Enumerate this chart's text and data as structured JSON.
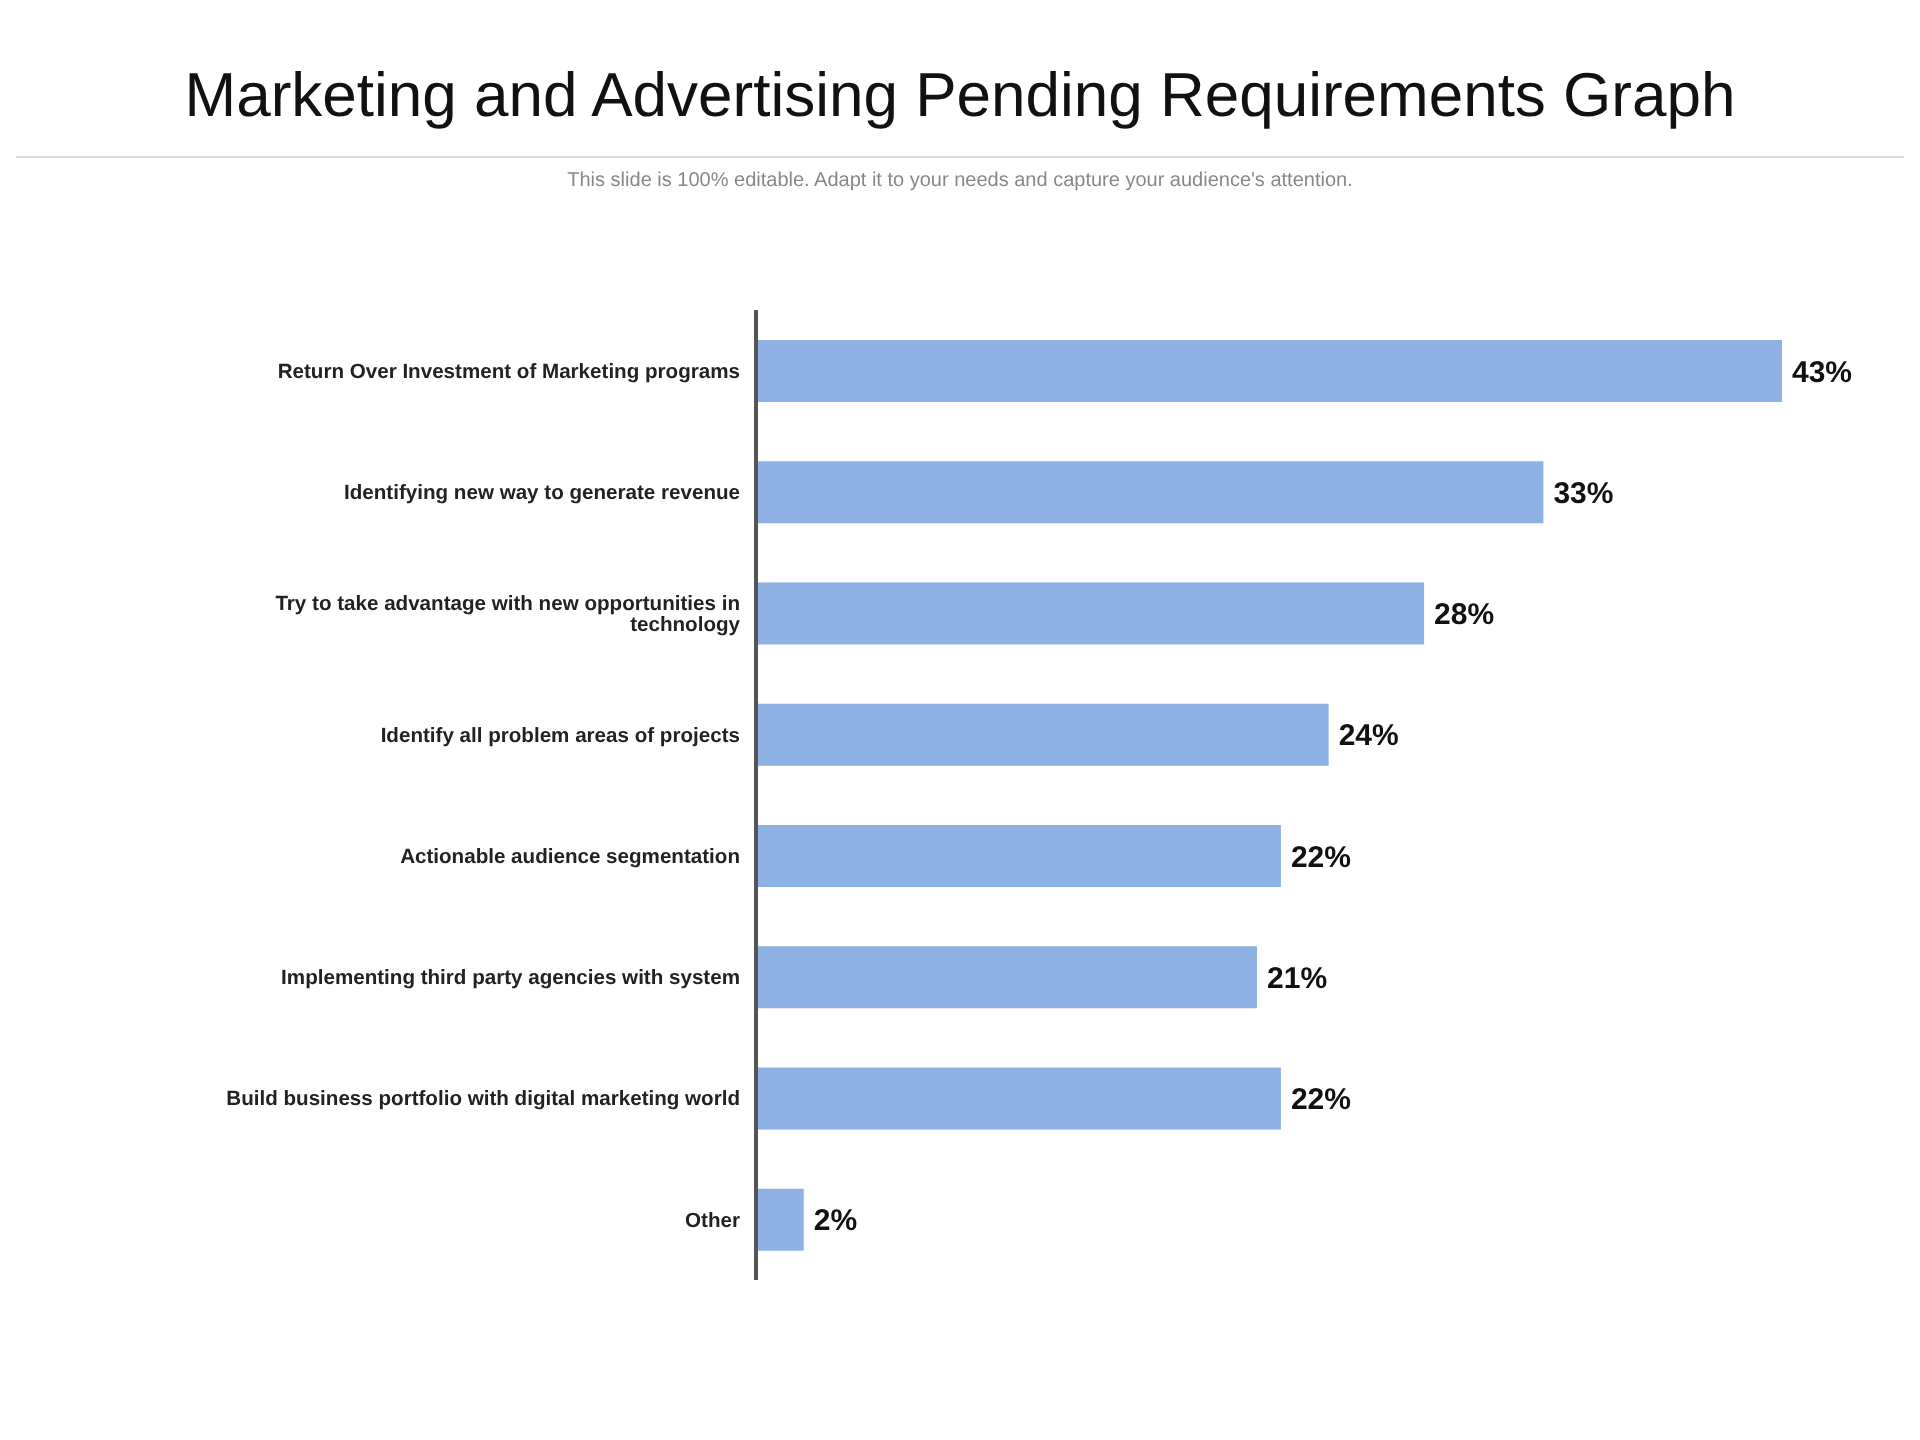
{
  "chart_data": {
    "type": "bar",
    "orientation": "horizontal",
    "title": "Marketing and Advertising Pending Requirements Graph",
    "subtitle": "This slide is 100% editable. Adapt it to your needs and capture your audience's attention.",
    "categories": [
      "Return Over Investment of Marketing programs",
      "Identifying  new way to generate revenue",
      "Try to take advantage with new opportunities in technology",
      "Identify all problem areas of projects",
      "Actionable audience segmentation",
      "Implementing third party agencies with system",
      "Build business portfolio with digital marketing world",
      "Other"
    ],
    "values": [
      43,
      33,
      28,
      24,
      22,
      21,
      22,
      2
    ],
    "value_labels": [
      "43%",
      "33%",
      "28%",
      "24%",
      "22%",
      "21%",
      "22%",
      "2%"
    ],
    "color": "#8eb1e3",
    "grid": false
  }
}
